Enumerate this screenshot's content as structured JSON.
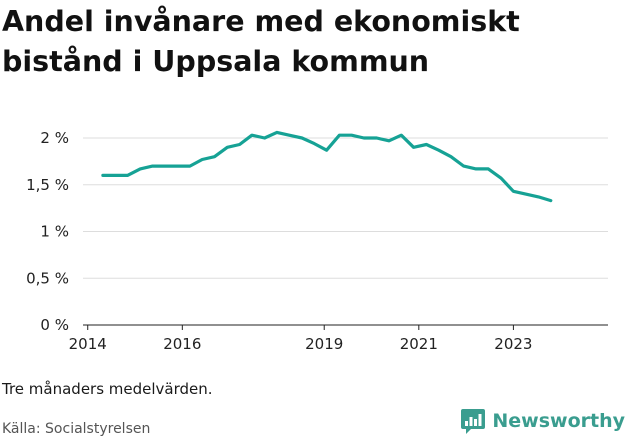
{
  "title": "Andel invånare med ekonomiskt bistånd i Uppsala kommun",
  "note": "Tre månaders medelvärden.",
  "source": "Källa: Socialstyrelsen",
  "brand": "Newsworthy",
  "colors": {
    "line": "#16a295",
    "grid": "#dddddd",
    "brand": "#3a9d8f"
  },
  "chart_data": {
    "type": "line",
    "title": "Andel invånare med ekonomiskt bistånd i Uppsala kommun",
    "xlabel": "",
    "ylabel": "",
    "x_ticks": [
      {
        "value": 2014.0,
        "label": "2014"
      },
      {
        "value": 2016.0,
        "label": "2016"
      },
      {
        "value": 2019.0,
        "label": "2019"
      },
      {
        "value": 2021.0,
        "label": "2021"
      },
      {
        "value": 2023.0,
        "label": "2023"
      }
    ],
    "y_ticks": [
      {
        "value": 0,
        "label": "0 %"
      },
      {
        "value": 0.5,
        "label": "0,5 %"
      },
      {
        "value": 1,
        "label": "1 %"
      },
      {
        "value": 1.5,
        "label": "1,5 %"
      },
      {
        "value": 2,
        "label": "2 %"
      }
    ],
    "xlim": [
      2013.9,
      2025.0
    ],
    "ylim": [
      0,
      2
    ],
    "grid": true,
    "series": [
      {
        "x": [
          2014.32,
          2014.58,
          2014.84,
          2015.11,
          2015.37,
          2015.63,
          2015.89,
          2016.16,
          2016.42,
          2016.68,
          2016.95,
          2017.21,
          2017.47,
          2017.74,
          2018.0,
          2018.26,
          2018.53,
          2018.79,
          2019.05,
          2019.32,
          2019.58,
          2019.84,
          2020.11,
          2020.37,
          2020.63,
          2020.89,
          2021.16,
          2021.42,
          2021.68,
          2021.95,
          2022.21,
          2022.47,
          2022.74,
          2023.0,
          2023.26,
          2023.53,
          2023.79
        ],
        "values": [
          1.6,
          1.6,
          1.6,
          1.67,
          1.7,
          1.7,
          1.7,
          1.7,
          1.77,
          1.8,
          1.9,
          1.93,
          2.03,
          2.0,
          2.06,
          2.03,
          2.0,
          1.94,
          1.87,
          2.03,
          2.03,
          2.0,
          2.0,
          1.97,
          2.03,
          1.9,
          1.93,
          1.87,
          1.8,
          1.7,
          1.67,
          1.67,
          1.57,
          1.43,
          1.4,
          1.37,
          1.33
        ]
      }
    ]
  }
}
